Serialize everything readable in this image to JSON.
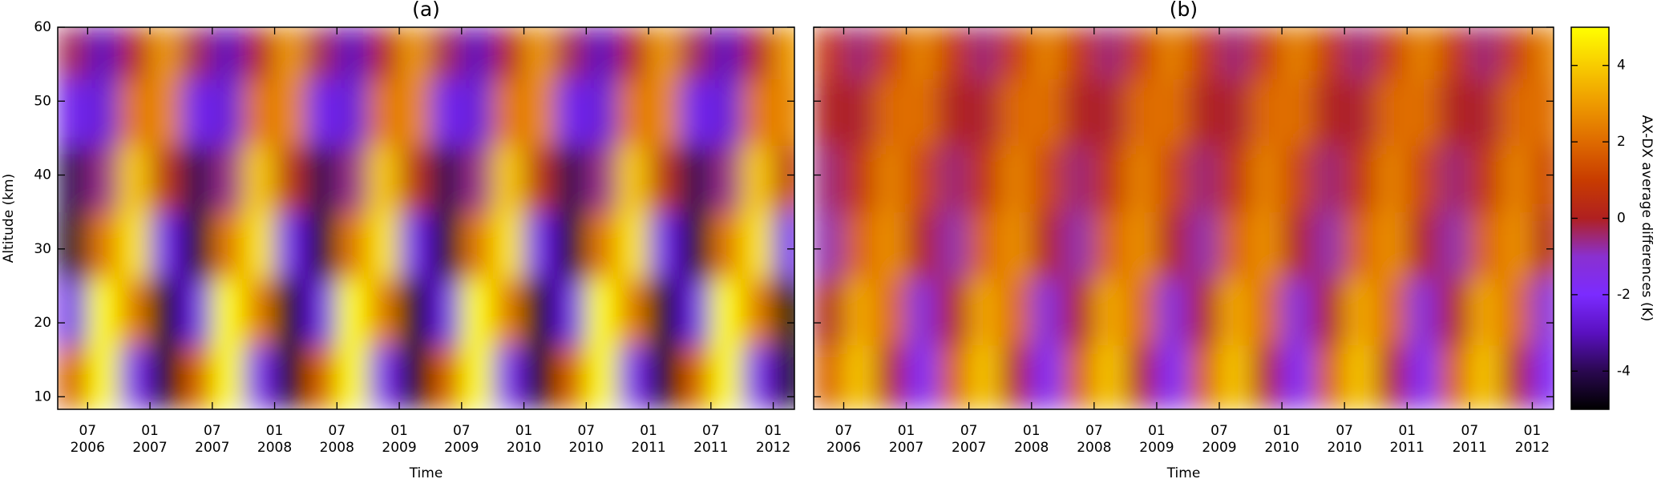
{
  "chart_data": [
    {
      "type": "heatmap",
      "title": "(a)",
      "x_label": "Time",
      "y_label": "Altitude (km)",
      "show_ytick_labels": true,
      "x_bins": [
        2006.25,
        2006.5,
        2006.75,
        2007,
        2007.25,
        2007.5,
        2007.75,
        2008,
        2008.25,
        2008.5,
        2008.75,
        2009,
        2009.25,
        2009.5,
        2009.75,
        2010,
        2010.25,
        2010.5,
        2010.75,
        2011,
        2011.25,
        2011.5,
        2011.75,
        2012,
        2012.25
      ],
      "y_bins": [
        8.3,
        17,
        26,
        35,
        44,
        53,
        60
      ],
      "values": [
        [
          1.7,
          5.8,
          -1.7,
          -5.8,
          1.7,
          5.8,
          -1.7,
          -5.8,
          1.7,
          5.8,
          -1.7,
          -5.8,
          1.7,
          5.8,
          -1.7,
          -5.8,
          1.7,
          5.8,
          -1.7,
          -5.8,
          1.7,
          5.8,
          -1.7,
          -5.8
        ],
        [
          -2.4,
          5.5,
          2.4,
          -5.5,
          -2.4,
          5.5,
          2.4,
          -5.5,
          -2.4,
          5.5,
          2.4,
          -5.5,
          -2.4,
          5.5,
          2.4,
          -5.5,
          -2.4,
          5.5,
          2.4,
          -5.5,
          -2.4,
          5.5,
          2.4,
          -5.5
        ],
        [
          -4.5,
          2.3,
          4.5,
          -2.3,
          -4.5,
          2.3,
          4.5,
          -2.3,
          -4.5,
          2.3,
          4.5,
          -2.3,
          -4.5,
          2.3,
          4.5,
          -2.3,
          -4.5,
          2.3,
          4.5,
          -2.3,
          -4.5,
          2.3,
          4.5,
          -2.3
        ],
        [
          -4,
          -0.6,
          4,
          0.6,
          -4,
          -0.6,
          4,
          0.6,
          -4,
          -0.6,
          4,
          0.6,
          -4,
          -0.6,
          4,
          0.6,
          -4,
          -0.6,
          4,
          0.6,
          -4,
          -0.6,
          4,
          0.6
        ],
        [
          -2.3,
          -2.6,
          2.3,
          2.6,
          -2.3,
          -2.6,
          2.3,
          2.6,
          -2.3,
          -2.6,
          2.3,
          2.6,
          -2.3,
          -2.6,
          2.3,
          2.6,
          -2.3,
          -2.6,
          2.3,
          2.6,
          -2.3,
          -2.6,
          2.3,
          2.6
        ],
        [
          -0.3,
          -3,
          0.3,
          3,
          -0.3,
          -3,
          0.3,
          3,
          -0.3,
          -3,
          0.3,
          3,
          -0.3,
          -3,
          0.3,
          3,
          -0.3,
          -3,
          0.3,
          3,
          -0.3,
          -3,
          0.3,
          3
        ]
      ],
      "xlim": [
        2006.26,
        2012.17
      ],
      "ylim": [
        8.3,
        60
      ],
      "xticks": [
        {
          "value": 2006.5,
          "label": "07 2006"
        },
        {
          "value": 2007,
          "label": "01 2007"
        },
        {
          "value": 2007.5,
          "label": "07 2007"
        },
        {
          "value": 2008,
          "label": "01 2008"
        },
        {
          "value": 2008.5,
          "label": "07 2008"
        },
        {
          "value": 2009,
          "label": "01 2009"
        },
        {
          "value": 2009.5,
          "label": "07 2009"
        },
        {
          "value": 2010,
          "label": "01 2010"
        },
        {
          "value": 2010.5,
          "label": "07 2010"
        },
        {
          "value": 2011,
          "label": "01 2011"
        },
        {
          "value": 2011.5,
          "label": "07 2011"
        },
        {
          "value": 2012,
          "label": "01 2012"
        }
      ],
      "yticks": [
        10,
        20,
        30,
        40,
        50,
        60
      ]
    },
    {
      "type": "heatmap",
      "title": "(b)",
      "x_label": "Time",
      "show_ytick_labels": false,
      "x_bins": [
        2006.25,
        2006.5,
        2006.75,
        2007,
        2007.25,
        2007.5,
        2007.75,
        2008,
        2008.25,
        2008.5,
        2008.75,
        2009,
        2009.25,
        2009.5,
        2009.75,
        2010,
        2010.25,
        2010.5,
        2010.75,
        2011,
        2011.25,
        2011.5,
        2011.75,
        2012,
        2012.25
      ],
      "y_bins": [
        8.3,
        17,
        26,
        35,
        44,
        53,
        60
      ],
      "values": [
        [
          1.8,
          3.9,
          0.2,
          -1.9,
          1.8,
          3.9,
          0.2,
          -1.9,
          1.8,
          3.9,
          0.2,
          -1.9,
          1.8,
          3.9,
          0.2,
          -1.9,
          1.8,
          3.9,
          0.2,
          -1.9,
          1.8,
          3.9,
          0.2,
          -1.9
        ],
        [
          0,
          3.3,
          2,
          -1.3,
          0,
          3.3,
          2,
          -1.3,
          0,
          3.3,
          2,
          -1.3,
          0,
          3.3,
          2,
          -1.3,
          0,
          3.3,
          2,
          -1.3,
          0,
          3.3,
          2,
          -1.3
        ],
        [
          -0.8,
          1.9,
          2.8,
          0.1,
          -0.8,
          1.9,
          2.8,
          0.1,
          -0.8,
          1.9,
          2.8,
          0.1,
          -0.8,
          1.9,
          2.8,
          0.1,
          -0.8,
          1.9,
          2.8,
          0.1,
          -0.8,
          1.9,
          2.8,
          0.1
        ],
        [
          -0.5,
          0.8,
          2.5,
          1.2,
          -0.5,
          0.8,
          2.5,
          1.2,
          -0.5,
          0.8,
          2.5,
          1.2,
          -0.5,
          0.8,
          2.5,
          1.2,
          -0.5,
          0.8,
          2.5,
          1.2,
          -0.5,
          0.8,
          2.5,
          1.2
        ],
        [
          0,
          -0.1,
          2,
          2.1,
          0,
          -0.1,
          2,
          2.1,
          0,
          -0.1,
          2,
          2.1,
          0,
          -0.1,
          2,
          2.1,
          0,
          -0.1,
          2,
          2.1,
          0,
          -0.1,
          2,
          2.1
        ],
        [
          0.9,
          -0.5,
          1.1,
          2.5,
          0.9,
          -0.5,
          1.1,
          2.5,
          0.9,
          -0.5,
          1.1,
          2.5,
          0.9,
          -0.5,
          1.1,
          2.5,
          0.9,
          -0.5,
          1.1,
          2.5,
          0.9,
          -0.5,
          1.1,
          2.5
        ]
      ],
      "xlim": [
        2006.26,
        2012.17
      ],
      "ylim": [
        8.3,
        60
      ],
      "xticks": [
        {
          "value": 2006.5,
          "label": "07 2006"
        },
        {
          "value": 2007,
          "label": "01 2007"
        },
        {
          "value": 2007.5,
          "label": "07 2007"
        },
        {
          "value": 2008,
          "label": "01 2008"
        },
        {
          "value": 2008.5,
          "label": "07 2008"
        },
        {
          "value": 2009,
          "label": "01 2009"
        },
        {
          "value": 2009.5,
          "label": "07 2009"
        },
        {
          "value": 2010,
          "label": "01 2010"
        },
        {
          "value": 2010.5,
          "label": "07 2010"
        },
        {
          "value": 2011,
          "label": "01 2011"
        },
        {
          "value": 2011.5,
          "label": "07 2011"
        },
        {
          "value": 2012,
          "label": "01 2012"
        }
      ],
      "yticks": [
        10,
        20,
        30,
        40,
        50,
        60
      ]
    }
  ],
  "colorbar": {
    "label": "AX-DX average differences (K)",
    "clim": [
      -5,
      5
    ],
    "ticks": [
      -4,
      -2,
      0,
      2,
      4
    ],
    "colormap": [
      "#000000",
      "#2a0850",
      "#5a10c0",
      "#7b2bff",
      "#8a30d0",
      "#b02020",
      "#c83c00",
      "#de6a00",
      "#ee9a00",
      "#f8cc00",
      "#ffff00"
    ]
  }
}
